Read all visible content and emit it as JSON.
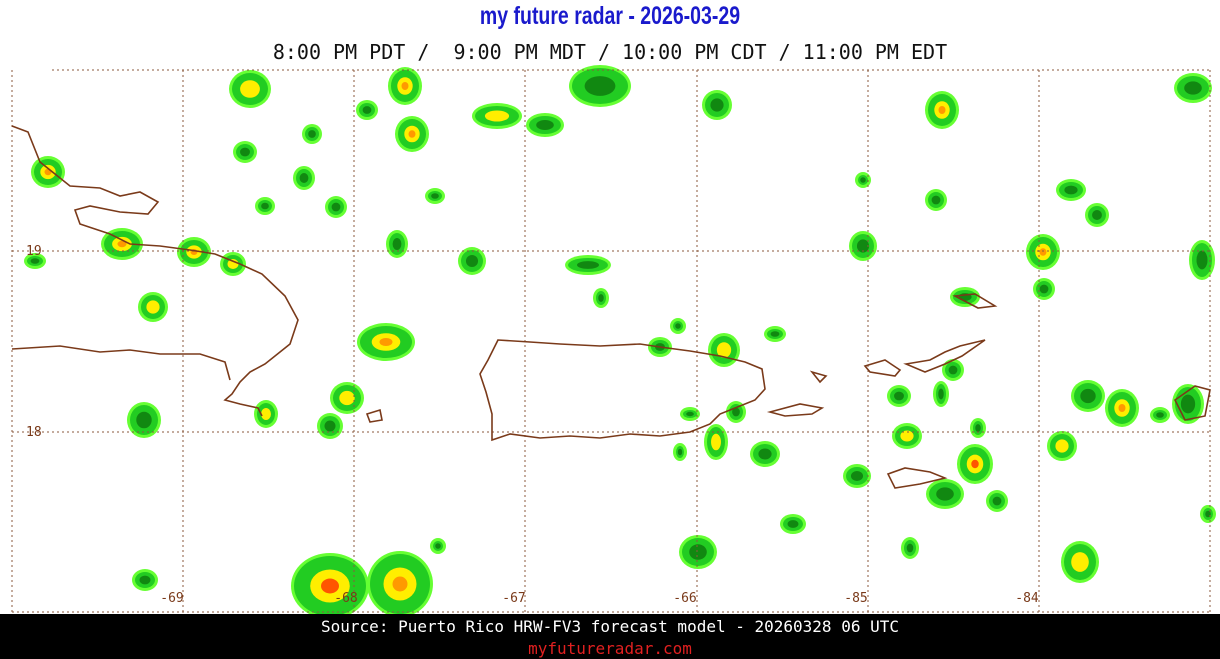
{
  "header": {
    "title": "my future radar - 2026-03-29",
    "times": "8:00 PM PDT /  9:00 PM MDT / 10:00 PM CDT / 11:00 PM EDT"
  },
  "map": {
    "longitude_labels": [
      "-69",
      "-68",
      "-67",
      "-66",
      "-85",
      "-84"
    ],
    "latitude_labels": [
      "19",
      "18"
    ]
  },
  "footer": {
    "source": "Source: Puerto Rico HRW-FV3 forecast model - 20260328 06 UTC",
    "site": "myfutureradar.com"
  }
}
